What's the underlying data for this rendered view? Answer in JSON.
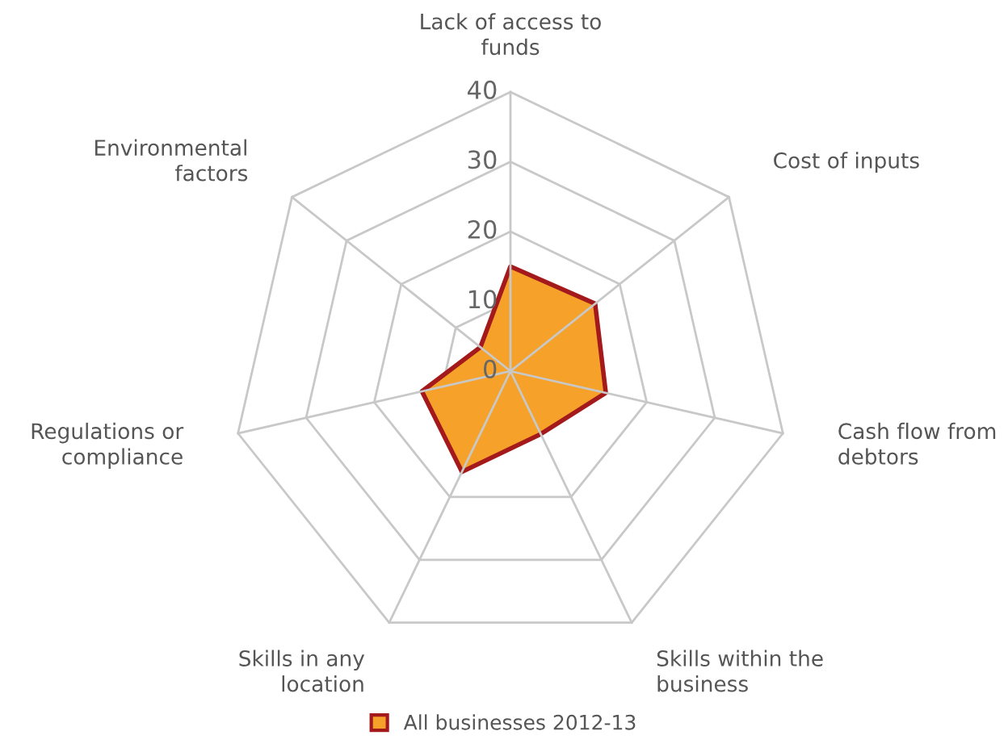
{
  "chart_data": {
    "type": "radar",
    "categories": [
      "Lack of access to\nfunds",
      "Cost of inputs",
      "Cash flow from\ndebtors",
      "Skills within the\nbusiness",
      "Skills in any\nlocation",
      "Regulations or\ncompliance",
      "Environmental\nfactors"
    ],
    "series": [
      {
        "name": "All businesses 2012-13",
        "color": "#f5a12a",
        "values": [
          15,
          15.5,
          14,
          10,
          16,
          13,
          5.5
        ]
      }
    ],
    "ylim": [
      0,
      40
    ],
    "yticks": [
      0,
      10,
      20,
      30,
      40
    ],
    "legend": "bottom",
    "grid": true
  }
}
